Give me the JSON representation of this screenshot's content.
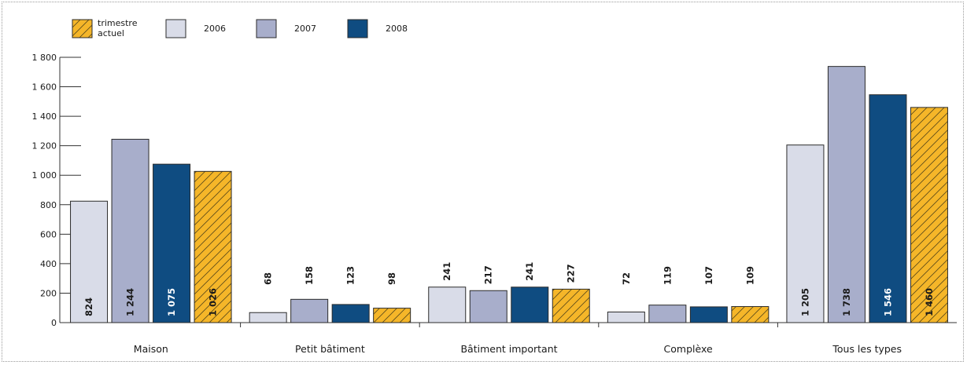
{
  "chart_data": {
    "type": "bar",
    "title": "",
    "xlabel": "",
    "ylabel": "",
    "ylim": [
      0,
      1800
    ],
    "yticks": [
      0,
      200,
      400,
      600,
      800,
      1000,
      1200,
      1400,
      1600,
      1800
    ],
    "ytick_labels": [
      "0",
      "200",
      "400",
      "600",
      "800",
      "1 000",
      "1 200",
      "1 400",
      "1 600",
      "1 800"
    ],
    "categories": [
      "Maison",
      "Petit bâtiment",
      "Bâtiment important",
      "Complèxe",
      "Tous les types"
    ],
    "grid": false,
    "legend_position": "top-left",
    "legend": [
      {
        "key": "current",
        "lines": [
          "trimestre",
          "actuel"
        ]
      },
      {
        "key": "2006",
        "lines": [
          "2006"
        ]
      },
      {
        "key": "2007",
        "lines": [
          "2007"
        ]
      },
      {
        "key": "2008",
        "lines": [
          "2008"
        ]
      }
    ],
    "series": [
      {
        "key": "2006",
        "name": "2006",
        "color": "#d9dce8",
        "label_color": "#1a1a1a",
        "pattern": "none",
        "values": [
          824,
          68,
          241,
          72,
          1205
        ],
        "labels": [
          "824",
          "68",
          "241",
          "72",
          "1 205"
        ]
      },
      {
        "key": "2007",
        "name": "2007",
        "color": "#a8aecb",
        "label_color": "#1a1a1a",
        "pattern": "none",
        "values": [
          1244,
          158,
          217,
          119,
          1738
        ],
        "labels": [
          "1 244",
          "158",
          "217",
          "119",
          "1 738"
        ]
      },
      {
        "key": "2008",
        "name": "2008",
        "color": "#0f4c81",
        "label_color": "#ffffff",
        "pattern": "none",
        "values": [
          1075,
          123,
          241,
          107,
          1546
        ],
        "labels": [
          "1 075",
          "123",
          "241",
          "107",
          "1 546"
        ]
      },
      {
        "key": "current",
        "name": "trimestre actuel",
        "color": "#f5b629",
        "label_color": "#1a1a1a",
        "pattern": "hatch",
        "values": [
          1026,
          98,
          227,
          109,
          1460
        ],
        "labels": [
          "1 026",
          "98",
          "227",
          "109",
          "1 460"
        ]
      }
    ]
  }
}
